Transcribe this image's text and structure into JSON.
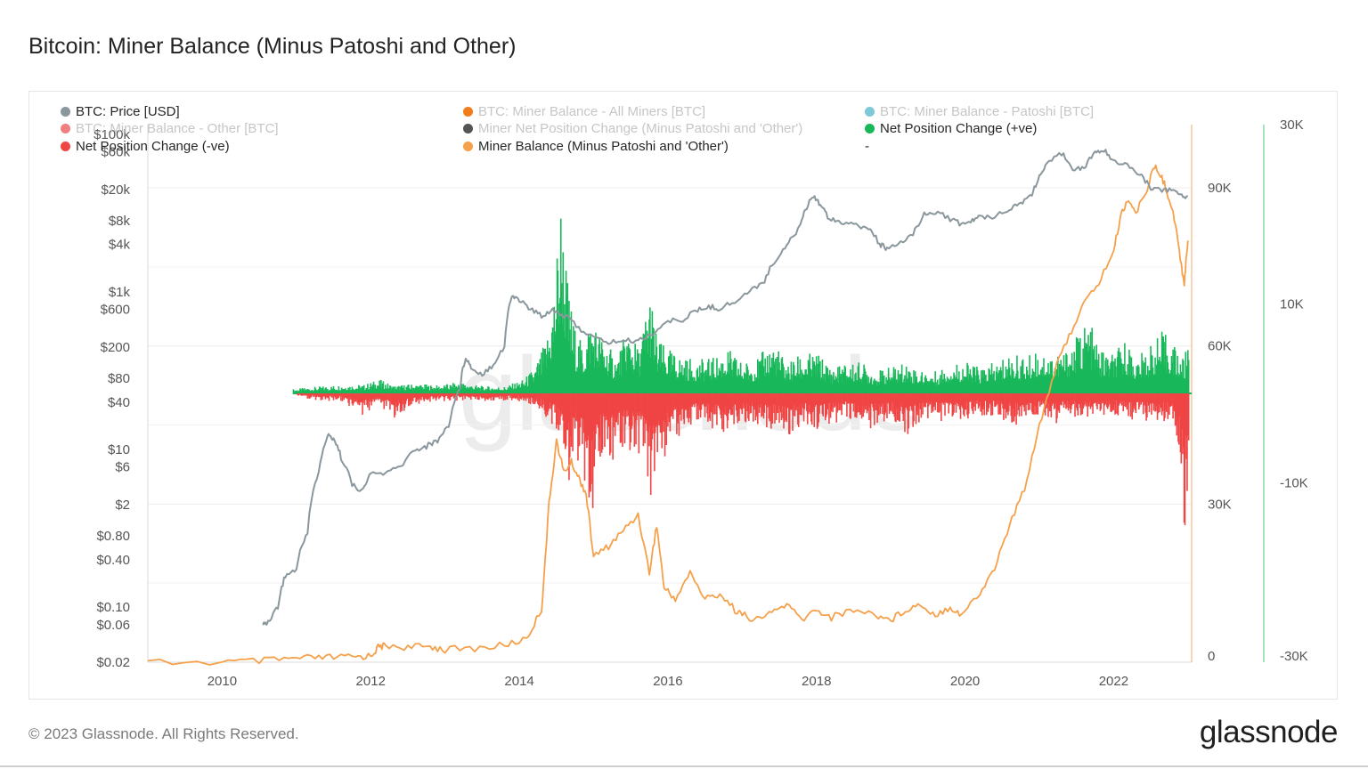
{
  "page": {
    "title": "Bitcoin: Miner Balance (Minus Patoshi and Other)",
    "copyright": "© 2023 Glassnode. All Rights Reserved.",
    "brand": "glassnode",
    "watermark": "glassnode"
  },
  "legend": [
    {
      "label": "BTC: Price [USD]",
      "color": "#8a979c",
      "active": true
    },
    {
      "label": "BTC: Miner Balance - All Miners [BTC]",
      "color": "#f07d1a",
      "active": false
    },
    {
      "label": "BTC: Miner Balance - Patoshi [BTC]",
      "color": "#7fc8d8",
      "active": false
    },
    {
      "label": "BTC: Miner Balance - Other [BTC]",
      "color": "#f08080",
      "active": false
    },
    {
      "label": "Miner Net Position Change (Minus Patoshi and 'Other')",
      "color": "#555555",
      "active": false
    },
    {
      "label": "Net Position Change (+ve)",
      "color": "#18b85a",
      "active": true
    },
    {
      "label": "Net Position Change (-ve)",
      "color": "#f04545",
      "active": true
    },
    {
      "label": "Miner Balance (Minus Patoshi and 'Other')",
      "color": "#f5a04a",
      "active": true
    },
    {
      "label": "-",
      "color": "",
      "active": true
    }
  ],
  "chart_data": {
    "type": "line",
    "xaxis": {
      "ticks": [
        "2010",
        "2012",
        "2014",
        "2016",
        "2018",
        "2020",
        "2022"
      ],
      "range": [
        2009.0,
        2023.05
      ]
    },
    "price_axis": {
      "scale": "log",
      "tick_labels": [
        "$100k",
        "$60k",
        "$20k",
        "$8k",
        "$4k",
        "$1k",
        "$600",
        "$200",
        "$80",
        "$40",
        "$10",
        "$6",
        "$2",
        "$0.80",
        "$0.40",
        "$0.10",
        "$0.06",
        "$0.02"
      ],
      "tick_values": [
        100000,
        60000,
        20000,
        8000,
        4000,
        1000,
        600,
        200,
        80,
        40,
        10,
        6,
        2,
        0.8,
        0.4,
        0.1,
        0.06,
        0.02
      ]
    },
    "balance_axis": {
      "tick_labels": [
        "90K",
        "60K",
        "30K",
        "0"
      ],
      "tick_values": [
        90000,
        60000,
        30000,
        0
      ],
      "range": [
        0,
        102000
      ]
    },
    "netchange_axis": {
      "tick_labels": [
        "30K",
        "10K",
        "-10K",
        "-30K"
      ],
      "tick_values": [
        30000,
        10000,
        -10000,
        -30000
      ],
      "range": [
        -30000,
        30000
      ]
    },
    "colors": {
      "price": "#8a979c",
      "balance": "#f5a04a",
      "net_positive": "#18b85a",
      "net_negative": "#f04545",
      "balance_axis_line": "#f5c89a",
      "netchange_axis_line": "#8fd8a8"
    },
    "series": [
      {
        "name": "BTC: Price [USD]",
        "axis": "price",
        "x": [
          2010.55,
          2010.62,
          2010.75,
          2010.85,
          2011.0,
          2011.15,
          2011.3,
          2011.42,
          2011.5,
          2011.6,
          2011.75,
          2011.9,
          2012.0,
          2012.2,
          2012.4,
          2012.6,
          2012.75,
          2012.9,
          2013.05,
          2013.2,
          2013.28,
          2013.35,
          2013.5,
          2013.65,
          2013.8,
          2013.9,
          2014.0,
          2014.15,
          2014.3,
          2014.45,
          2014.6,
          2014.8,
          2015.0,
          2015.2,
          2015.4,
          2015.6,
          2015.8,
          2016.0,
          2016.2,
          2016.4,
          2016.55,
          2016.7,
          2016.9,
          2017.1,
          2017.3,
          2017.45,
          2017.6,
          2017.75,
          2017.85,
          2017.96,
          2018.05,
          2018.15,
          2018.3,
          2018.5,
          2018.7,
          2018.85,
          2018.95,
          2019.1,
          2019.3,
          2019.45,
          2019.6,
          2019.8,
          2019.95,
          2020.1,
          2020.2,
          2020.4,
          2020.6,
          2020.75,
          2020.9,
          2021.0,
          2021.1,
          2021.3,
          2021.45,
          2021.6,
          2021.75,
          2021.87,
          2022.0,
          2022.15,
          2022.35,
          2022.5,
          2022.65,
          2022.8,
          2022.9,
          2023.0
        ],
        "values": [
          0.06,
          0.065,
          0.1,
          0.25,
          0.3,
          0.9,
          5,
          15,
          14,
          8,
          3.5,
          3,
          5,
          5,
          6,
          10,
          11,
          13,
          20,
          60,
          150,
          110,
          90,
          120,
          200,
          900,
          800,
          600,
          500,
          600,
          500,
          350,
          260,
          230,
          240,
          240,
          300,
          420,
          450,
          580,
          650,
          620,
          750,
          1000,
          1400,
          2500,
          4000,
          6000,
          11000,
          17000,
          13000,
          9000,
          8000,
          7000,
          6500,
          4000,
          3600,
          3800,
          5500,
          9500,
          10500,
          8500,
          7200,
          8000,
          9000,
          9200,
          11500,
          13500,
          17000,
          29000,
          40000,
          58000,
          38000,
          36000,
          60000,
          62000,
          47000,
          42000,
          31000,
          21000,
          20000,
          19500,
          17000,
          16500
        ]
      },
      {
        "name": "Miner Balance (Minus Patoshi and 'Other')",
        "axis": "balance",
        "x": [
          2009.0,
          2010.0,
          2010.5,
          2010.9,
          2011.2,
          2011.5,
          2011.8,
          2012.0,
          2012.1,
          2012.2,
          2012.5,
          2012.8,
          2013.0,
          2013.4,
          2013.8,
          2014.1,
          2014.3,
          2014.4,
          2014.5,
          2014.6,
          2014.7,
          2014.8,
          2014.9,
          2015.0,
          2015.2,
          2015.4,
          2015.6,
          2015.75,
          2015.85,
          2015.95,
          2016.1,
          2016.3,
          2016.5,
          2016.7,
          2016.9,
          2017.0,
          2017.2,
          2017.4,
          2017.6,
          2017.8,
          2018.0,
          2018.2,
          2018.5,
          2018.8,
          2019.0,
          2019.2,
          2019.4,
          2019.6,
          2019.8,
          2019.95,
          2020.2,
          2020.4,
          2020.6,
          2020.8,
          2021.0,
          2021.2,
          2021.4,
          2021.6,
          2021.8,
          2022.0,
          2022.1,
          2022.2,
          2022.3,
          2022.45,
          2022.55,
          2022.65,
          2022.75,
          2022.85,
          2022.9,
          2022.95,
          2023.0
        ],
        "values": [
          0,
          0,
          200,
          600,
          800,
          900,
          1000,
          1200,
          2800,
          3200,
          2800,
          3000,
          2400,
          2600,
          3200,
          4500,
          10000,
          30000,
          42000,
          36000,
          38000,
          35000,
          32000,
          20000,
          22000,
          25000,
          28000,
          17000,
          26000,
          14000,
          12000,
          17000,
          12000,
          13000,
          10000,
          9000,
          8000,
          9500,
          11000,
          8000,
          10000,
          8500,
          10000,
          9000,
          8000,
          10000,
          11000,
          9000,
          10500,
          9000,
          13000,
          18000,
          26000,
          33000,
          45000,
          55000,
          62000,
          68000,
          72000,
          78000,
          85000,
          88000,
          85000,
          90000,
          94000,
          92000,
          88000,
          82000,
          76000,
          72000,
          80000
        ]
      },
      {
        "name": "Net Position Change (+ve)",
        "axis": "netchange",
        "x": [
          2010.95,
          2011.2,
          2011.6,
          2011.9,
          2012.1,
          2012.3,
          2012.6,
          2012.9,
          2013.2,
          2013.5,
          2013.8,
          2014.05,
          2014.2,
          2014.35,
          2014.45,
          2014.55,
          2014.65,
          2014.75,
          2014.85,
          2014.95,
          2015.1,
          2015.3,
          2015.45,
          2015.6,
          2015.75,
          2015.85,
          2016.0,
          2016.2,
          2016.4,
          2016.6,
          2016.8,
          2017.0,
          2017.2,
          2017.4,
          2017.6,
          2017.8,
          2018.0,
          2018.2,
          2018.4,
          2018.6,
          2018.8,
          2019.0,
          2019.2,
          2019.4,
          2019.6,
          2019.8,
          2020.0,
          2020.2,
          2020.4,
          2020.6,
          2020.8,
          2021.0,
          2021.2,
          2021.35,
          2021.5,
          2021.65,
          2021.8,
          2022.0,
          2022.15,
          2022.3,
          2022.5,
          2022.65,
          2022.8,
          2022.95,
          2023.0
        ],
        "values": [
          500,
          700,
          1000,
          1000,
          1600,
          900,
          1100,
          900,
          1300,
          800,
          800,
          1600,
          3000,
          6000,
          11000,
          23000,
          12000,
          7000,
          5500,
          9000,
          6500,
          4000,
          7500,
          5000,
          12000,
          6000,
          5000,
          4000,
          3800,
          4000,
          5000,
          3500,
          4000,
          6000,
          3500,
          4500,
          4500,
          3000,
          3500,
          3500,
          2500,
          3000,
          3500,
          2500,
          2500,
          3500,
          3500,
          3000,
          3500,
          4500,
          4000,
          5000,
          4500,
          5000,
          6500,
          8500,
          5000,
          4500,
          6000,
          4000,
          5500,
          7000,
          5500,
          4000,
          7500
        ]
      },
      {
        "name": "Net Position Change (-ve)",
        "axis": "netchange",
        "x": [
          2011.0,
          2011.3,
          2011.6,
          2011.9,
          2012.1,
          2012.3,
          2012.6,
          2012.9,
          2013.2,
          2013.5,
          2013.8,
          2014.05,
          2014.3,
          2014.5,
          2014.65,
          2014.75,
          2014.85,
          2015.0,
          2015.1,
          2015.2,
          2015.4,
          2015.55,
          2015.65,
          2015.75,
          2015.85,
          2016.0,
          2016.2,
          2016.4,
          2016.6,
          2016.8,
          2017.0,
          2017.2,
          2017.4,
          2017.6,
          2017.8,
          2018.0,
          2018.2,
          2018.4,
          2018.6,
          2018.8,
          2019.0,
          2019.2,
          2019.4,
          2019.6,
          2019.8,
          2020.0,
          2020.2,
          2020.4,
          2020.6,
          2020.8,
          2021.0,
          2021.2,
          2021.4,
          2021.6,
          2021.8,
          2022.0,
          2022.2,
          2022.4,
          2022.55,
          2022.7,
          2022.8,
          2022.88,
          2022.95,
          2023.0
        ],
        "values": [
          -400,
          -800,
          -1000,
          -2500,
          -1500,
          -2800,
          -1200,
          -900,
          -800,
          -1000,
          -800,
          -900,
          -2000,
          -4500,
          -10000,
          -7000,
          -9500,
          -13500,
          -7000,
          -8000,
          -6000,
          -7000,
          -6500,
          -12000,
          -10500,
          -5500,
          -4500,
          -3500,
          -4000,
          -4500,
          -3500,
          -3500,
          -4000,
          -5000,
          -3500,
          -4000,
          -3500,
          -3000,
          -4500,
          -3500,
          -3000,
          -5000,
          -3000,
          -3000,
          -3500,
          -3000,
          -2500,
          -2500,
          -3500,
          -3500,
          -2500,
          -3500,
          -2500,
          -3000,
          -3000,
          -2500,
          -3000,
          -3000,
          -3500,
          -3000,
          -4000,
          -8000,
          -17000,
          -7000
        ]
      }
    ]
  }
}
